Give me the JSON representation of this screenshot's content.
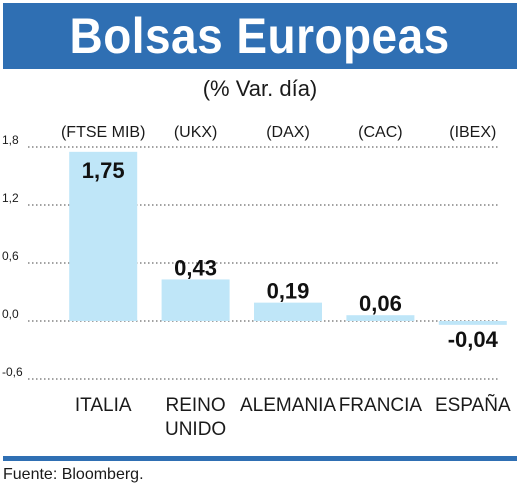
{
  "title": "Bolsas Europeas",
  "subtitle": "(% Var. día)",
  "source": "Fuente: Bloomberg.",
  "colors": {
    "banner": "#2f6fb3",
    "bar": "#bfe6f8"
  },
  "chart_data": {
    "type": "bar",
    "title": "Bolsas Europeas",
    "subtitle": "(% Var. día)",
    "xlabel": "",
    "ylabel": "",
    "ylim": [
      -0.6,
      1.8
    ],
    "yticks": [
      -0.6,
      0.0,
      0.6,
      1.2,
      1.8
    ],
    "ytick_labels": [
      "-0,6",
      "0,0",
      "0,6",
      "1,2",
      "1,8"
    ],
    "grid": true,
    "categories": [
      "ITALIA",
      "REINO UNIDO",
      "ALEMANIA",
      "FRANCIA",
      "ESPAÑA"
    ],
    "category_lines": [
      [
        "ITALIA"
      ],
      [
        "REINO",
        "UNIDO"
      ],
      [
        "ALEMANIA"
      ],
      [
        "FRANCIA"
      ],
      [
        "ESPAÑA"
      ]
    ],
    "indices": [
      "(FTSE MIB)",
      "(UKX)",
      "(DAX)",
      "(CAC)",
      "(IBEX)"
    ],
    "values": [
      1.75,
      0.43,
      0.19,
      0.06,
      -0.04
    ],
    "value_labels": [
      "1,75",
      "0,43",
      "0,19",
      "0,06",
      "-0,04"
    ]
  }
}
